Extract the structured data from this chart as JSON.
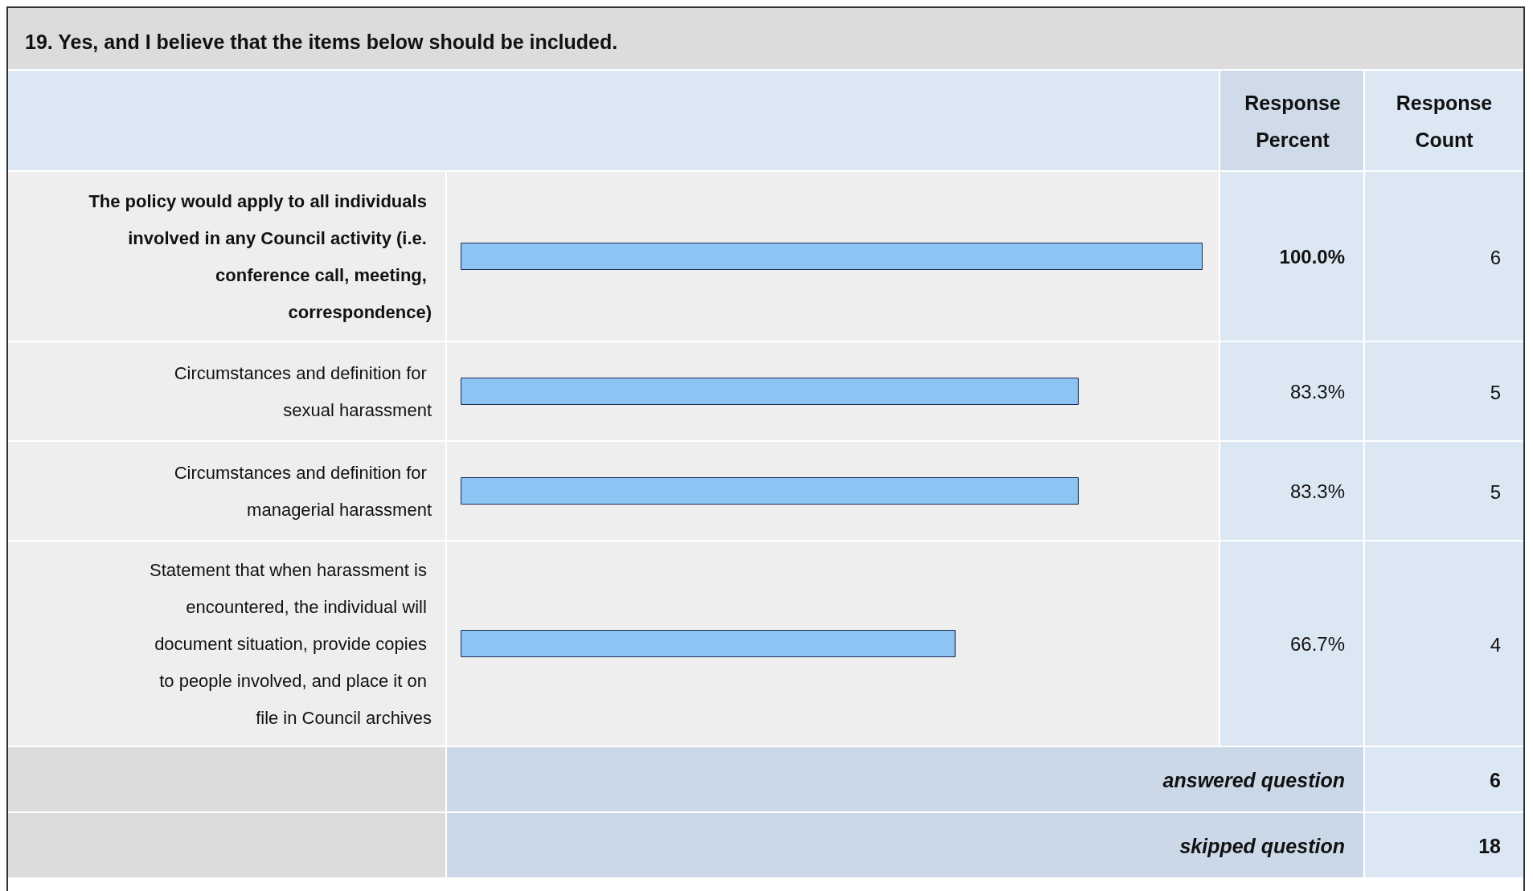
{
  "chart_data": {
    "type": "bar",
    "orientation": "horizontal",
    "title": "19. Yes, and I believe that the items below should be included.",
    "categories": [
      "The policy would apply to all individuals involved in any Council activity (i.e. conference call, meeting, correspondence)",
      "Circumstances and definition for sexual harassment",
      "Circumstances and definition for managerial harassment",
      "Statement that when harassment is encountered, the individual will document situation, provide copies to people involved, and place it on file in Council archives"
    ],
    "values": [
      100.0,
      83.3,
      83.3,
      66.7
    ],
    "value_labels": [
      "100.0%",
      "83.3%",
      "83.3%",
      "66.7%"
    ],
    "color": "#8cc4f4",
    "annotations": [
      "Response Percent",
      "Response Count",
      "6",
      "5",
      "5",
      "4",
      "answered question",
      "6",
      "skipped question",
      "18"
    ]
  }
}
